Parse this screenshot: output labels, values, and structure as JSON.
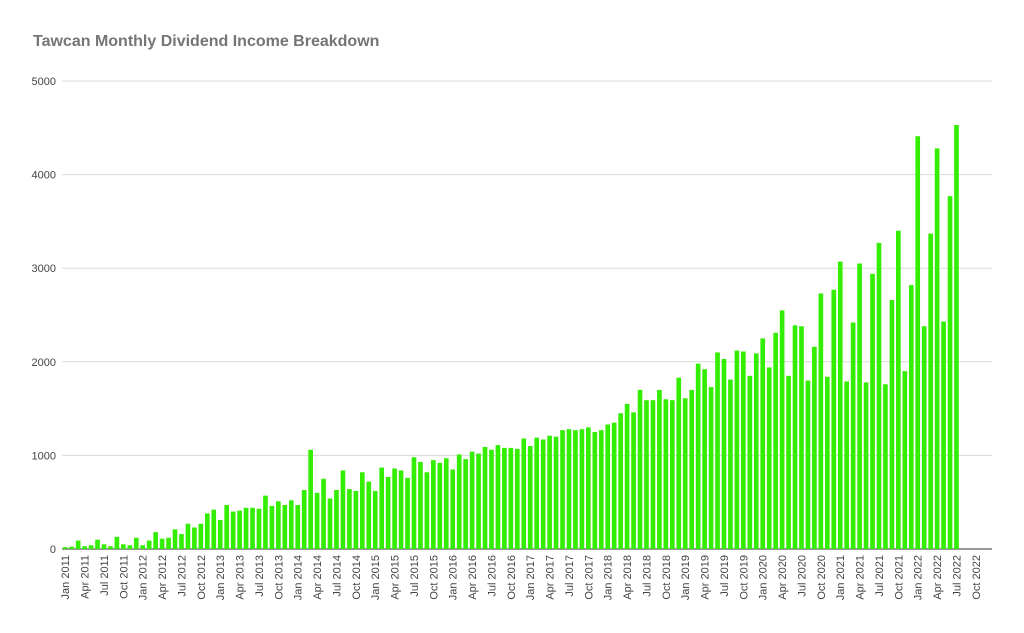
{
  "chart_data": {
    "type": "bar",
    "title": "Tawcan Monthly Dividend Income Breakdown",
    "xlabel": "",
    "ylabel": "",
    "ylim": [
      0,
      5000
    ],
    "yticks": [
      0,
      1000,
      2000,
      3000,
      4000,
      5000
    ],
    "grid": true,
    "legend": "none",
    "bar_color": "#33ee00",
    "x_tick_labels": [
      "Jan 2011",
      "Apr 2011",
      "Jul 2011",
      "Oct 2011",
      "Jan 2012",
      "Apr 2012",
      "Jul 2012",
      "Oct 2012",
      "Jan 2013",
      "Apr 2013",
      "Jul 2013",
      "Oct 2013",
      "Jan 2014",
      "Apr 2014",
      "Jul 2014",
      "Oct 2014",
      "Jan 2015",
      "Apr 2015",
      "Jul 2015",
      "Oct 2015",
      "Jan 2016",
      "Apr 2016",
      "Jul 2016",
      "Oct 2016",
      "Jan 2017",
      "Apr 2017",
      "Jul 2017",
      "Oct 2017",
      "Jan 2018",
      "Apr 2018",
      "Jul 2018",
      "Oct 2018",
      "Jan 2019",
      "Apr 2019",
      "Jul 2019",
      "Oct 2019",
      "Jan 2020",
      "Apr 2020",
      "Jul 2020",
      "Oct 2020",
      "Jan 2021",
      "Apr 2021",
      "Jul 2021",
      "Oct 2021",
      "Jan 2022",
      "Apr 2022",
      "Jul 2022",
      "Oct 2022"
    ],
    "x_tick_interval_months": 3,
    "values": [
      20,
      25,
      90,
      30,
      40,
      100,
      50,
      30,
      130,
      50,
      40,
      120,
      40,
      90,
      180,
      110,
      120,
      210,
      160,
      270,
      230,
      270,
      380,
      420,
      310,
      470,
      400,
      410,
      440,
      440,
      430,
      570,
      460,
      510,
      470,
      520,
      470,
      630,
      1060,
      600,
      750,
      540,
      630,
      840,
      640,
      620,
      820,
      720,
      620,
      870,
      770,
      860,
      840,
      760,
      980,
      930,
      820,
      950,
      920,
      970,
      850,
      1010,
      960,
      1040,
      1020,
      1090,
      1060,
      1110,
      1080,
      1080,
      1070,
      1180,
      1100,
      1190,
      1170,
      1210,
      1200,
      1270,
      1280,
      1270,
      1280,
      1300,
      1250,
      1270,
      1330,
      1350,
      1450,
      1550,
      1460,
      1700,
      1590,
      1590,
      1700,
      1600,
      1590,
      1830,
      1610,
      1700,
      1980,
      1920,
      1730,
      2100,
      2030,
      1810,
      2120,
      2110,
      1850,
      2090,
      2250,
      1940,
      2310,
      2550,
      1850,
      2390,
      2380,
      1800,
      2160,
      2730,
      1840,
      2770,
      3070,
      1790,
      2420,
      3050,
      1780,
      2940,
      3270,
      1760,
      2660,
      3400,
      1900,
      2820,
      4410,
      2380,
      3370,
      4280,
      2430,
      3770,
      4530
    ]
  }
}
